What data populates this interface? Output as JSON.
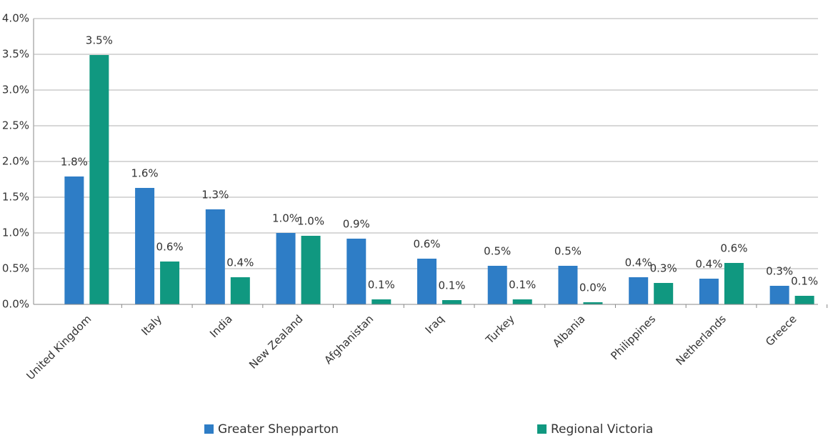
{
  "chart_data": {
    "type": "bar",
    "categories": [
      "United Kingdom",
      "Italy",
      "India",
      "New Zealand",
      "Afghanistan",
      "Iraq",
      "Turkey",
      "Albania",
      "Philippines",
      "Netherlands",
      "Greece"
    ],
    "series": [
      {
        "name": "Greater Shepparton",
        "color": "#2e7dc6",
        "values": [
          1.79,
          1.63,
          1.33,
          1.0,
          0.92,
          0.64,
          0.54,
          0.54,
          0.38,
          0.36,
          0.26
        ],
        "value_labels": [
          "1.8%",
          "1.6%",
          "1.3%",
          "1.0%",
          "0.9%",
          "0.6%",
          "0.5%",
          "0.5%",
          "0.4%",
          "0.4%",
          "0.3%"
        ]
      },
      {
        "name": "Regional Victoria",
        "color": "#109880",
        "values": [
          3.49,
          0.6,
          0.38,
          0.96,
          0.07,
          0.06,
          0.07,
          0.03,
          0.3,
          0.58,
          0.12
        ],
        "value_labels": [
          "3.5%",
          "0.6%",
          "0.4%",
          "1.0%",
          "0.1%",
          "0.1%",
          "0.1%",
          "0.0%",
          "0.3%",
          "0.6%",
          "0.1%"
        ]
      }
    ],
    "ylim": [
      0,
      4
    ],
    "yticks": [
      {
        "value": 0,
        "label": "0.0%"
      },
      {
        "value": 0.5,
        "label": "0.5%"
      },
      {
        "value": 1,
        "label": "1.0%"
      },
      {
        "value": 1.5,
        "label": "1.5%"
      },
      {
        "value": 2,
        "label": "2.0%"
      },
      {
        "value": 2.5,
        "label": "2.5%"
      },
      {
        "value": 3,
        "label": "3.0%"
      },
      {
        "value": 3.5,
        "label": "3.5%"
      },
      {
        "value": 4,
        "label": "4.0%"
      }
    ],
    "grid": true,
    "legend": "bottom"
  }
}
